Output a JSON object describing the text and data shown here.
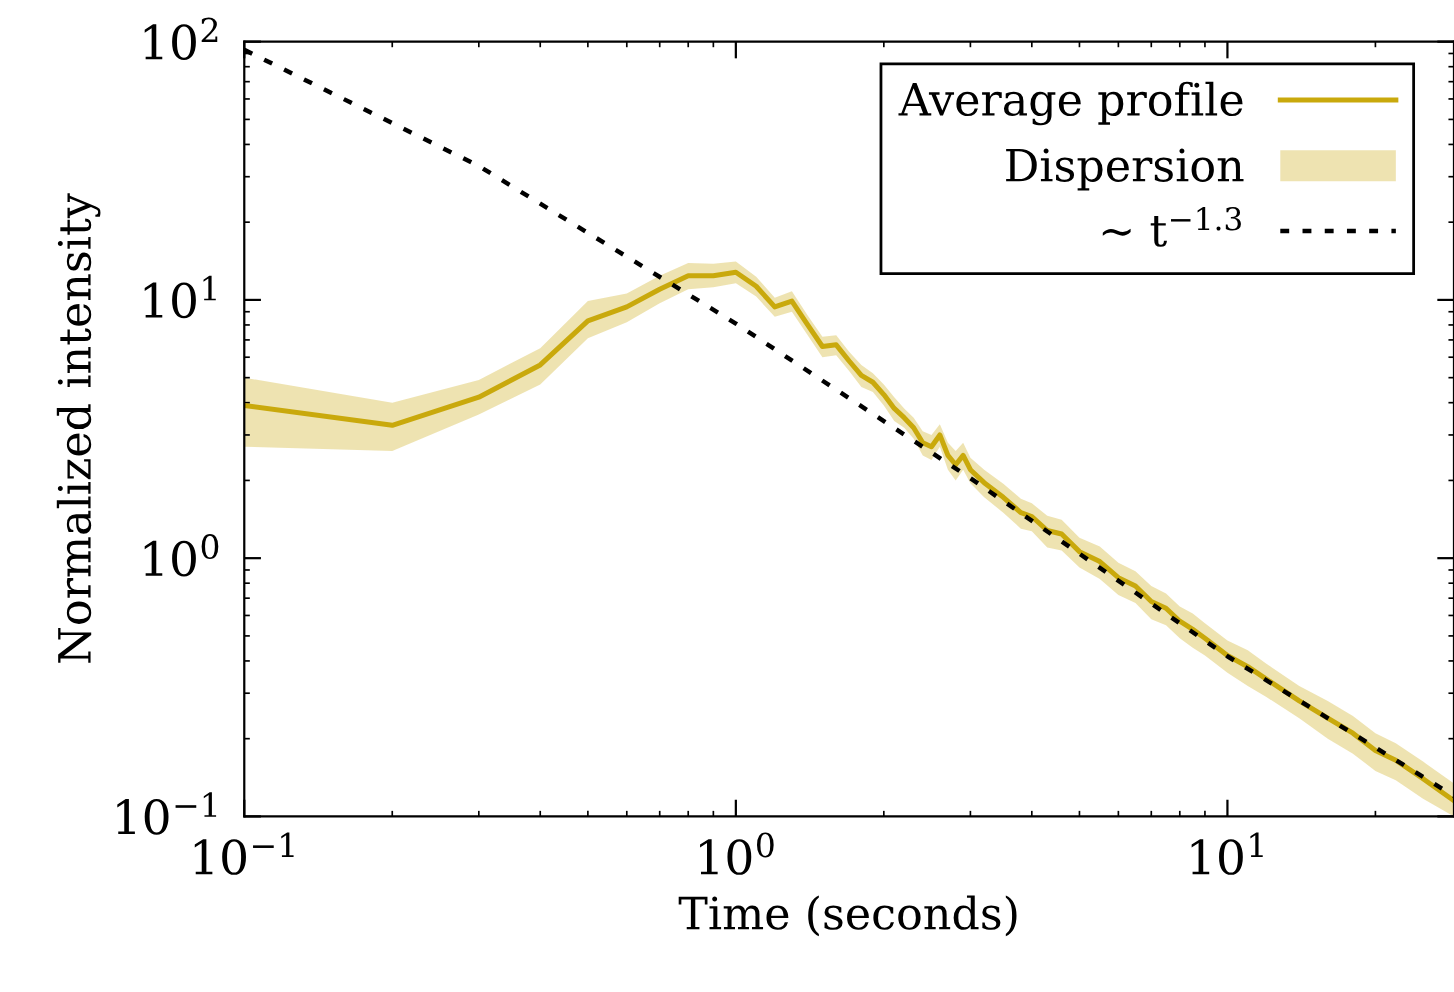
{
  "chart_data": {
    "type": "line",
    "xlabel": "Time (seconds)",
    "ylabel": "Normalized intensity",
    "log": "xy",
    "xlim": [
      0.1,
      28.9
    ],
    "ylim": [
      0.1,
      100
    ],
    "xticks": [
      {
        "value": 0.1,
        "label": "10$^{−1}$"
      },
      {
        "value": 1,
        "label": "10$^{0}$"
      },
      {
        "value": 10,
        "label": "10$^{1}$"
      }
    ],
    "yticks": [
      {
        "value": 0.1,
        "label": "10$^{−1}$"
      },
      {
        "value": 1,
        "label": "10$^{0}$"
      },
      {
        "value": 10,
        "label": "10$^{1}$"
      },
      {
        "value": 100,
        "label": "10$^{2}$"
      }
    ],
    "grid": false,
    "legend": "top right",
    "marker": "none",
    "annotations": [
      "Dispersion"
    ],
    "series": [
      {
        "name": "Average profile",
        "color": "#c9a90c",
        "x": [
          0.1,
          0.2,
          0.3,
          0.4,
          0.5,
          0.6,
          0.7,
          0.8,
          0.9,
          1.0,
          1.1,
          1.2,
          1.3,
          1.4,
          1.5,
          1.6,
          1.7,
          1.8,
          1.9,
          2.0,
          2.1,
          2.2,
          2.3,
          2.4,
          2.5,
          2.6,
          2.7,
          2.8,
          2.9,
          3.0,
          3.2,
          3.5,
          3.8,
          4,
          4.3,
          4.6,
          5,
          5.5,
          6,
          6.5,
          7,
          7.5,
          8,
          8.5,
          9,
          10,
          11,
          12,
          14,
          16,
          18,
          20,
          22,
          25,
          28.9
        ],
        "values": [
          3.9,
          3.27,
          4.2,
          5.6,
          8.3,
          9.4,
          11.0,
          12.4,
          12.4,
          12.8,
          11.3,
          9.4,
          9.9,
          8.0,
          6.6,
          6.7,
          5.8,
          5.1,
          4.8,
          4.3,
          3.8,
          3.5,
          3.2,
          2.8,
          2.7,
          3.0,
          2.5,
          2.3,
          2.5,
          2.2,
          1.96,
          1.72,
          1.5,
          1.45,
          1.28,
          1.24,
          1.06,
          0.97,
          0.84,
          0.78,
          0.68,
          0.64,
          0.57,
          0.53,
          0.49,
          0.42,
          0.38,
          0.34,
          0.28,
          0.24,
          0.21,
          0.18,
          0.165,
          0.14,
          0.115
        ],
        "lower": [
          2.7,
          2.6,
          3.6,
          4.7,
          7.1,
          8.2,
          9.7,
          11,
          11.2,
          11.6,
          10.3,
          8.6,
          9.0,
          7.3,
          6.0,
          6.1,
          5.3,
          4.6,
          4.4,
          3.9,
          3.4,
          3.2,
          2.9,
          2.5,
          2.4,
          2.7,
          2.2,
          2.0,
          2.2,
          1.95,
          1.72,
          1.5,
          1.3,
          1.27,
          1.1,
          1.07,
          0.92,
          0.83,
          0.72,
          0.67,
          0.58,
          0.55,
          0.49,
          0.45,
          0.42,
          0.36,
          0.32,
          0.29,
          0.24,
          0.2,
          0.175,
          0.15,
          0.138,
          0.117,
          0.1
        ],
        "upper": [
          5.0,
          4.0,
          4.9,
          6.5,
          9.9,
          10.6,
          12.4,
          13.9,
          13.8,
          14.1,
          12.3,
          10.2,
          10.8,
          8.7,
          7.2,
          7.3,
          6.3,
          5.6,
          5.2,
          4.7,
          4.2,
          3.8,
          3.5,
          3.1,
          3.0,
          3.3,
          2.8,
          2.6,
          2.8,
          2.45,
          2.2,
          1.94,
          1.7,
          1.63,
          1.46,
          1.41,
          1.2,
          1.11,
          0.96,
          0.89,
          0.78,
          0.73,
          0.65,
          0.61,
          0.56,
          0.48,
          0.44,
          0.39,
          0.32,
          0.28,
          0.245,
          0.21,
          0.192,
          0.163,
          0.134
        ]
      },
      {
        "name": "∼ t$^{−1.3}$",
        "line_style": "dotted",
        "color": "#000000",
        "x": [
          0.1,
          0.3,
          1,
          3,
          10,
          28.9
        ],
        "values": [
          93,
          33,
          8.1,
          2.04,
          0.417,
          0.12
        ]
      }
    ]
  }
}
